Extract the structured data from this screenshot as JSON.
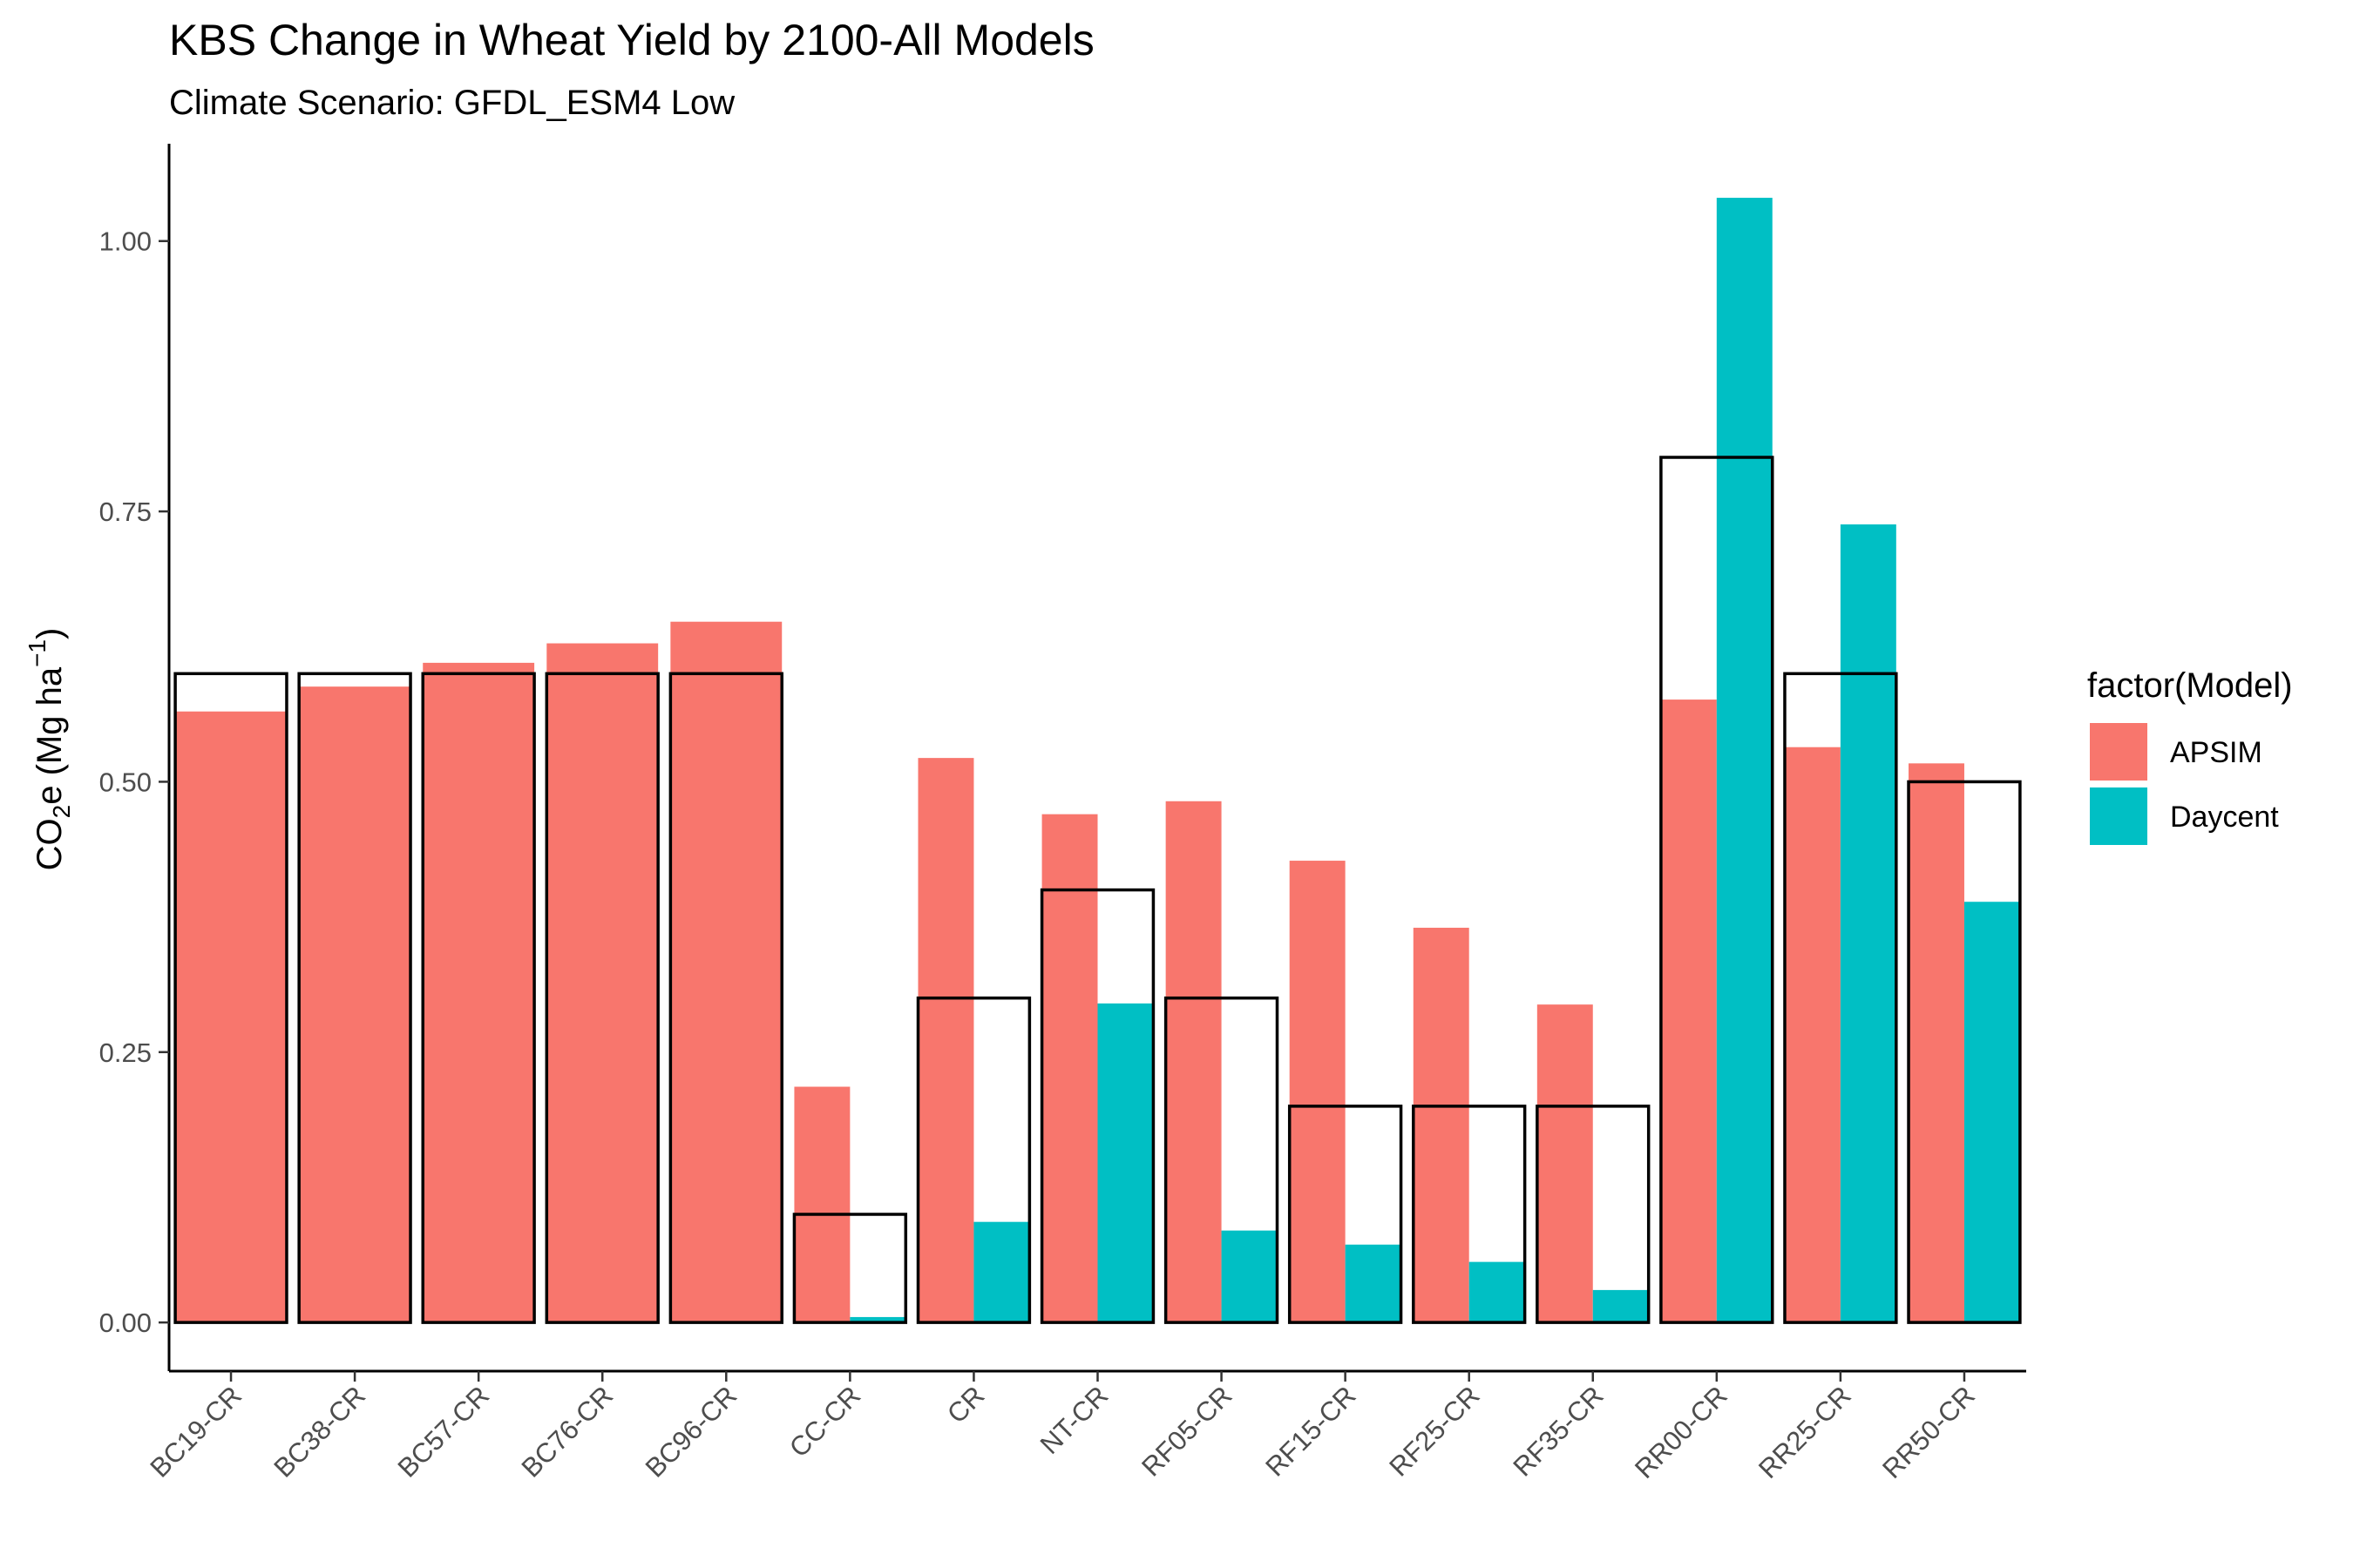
{
  "chart_data": {
    "type": "bar",
    "title": "KBS Change in Wheat Yield by 2100-All Models",
    "subtitle": "Climate Scenario: GFDL_ESM4 Low",
    "xlabel": "",
    "ylabel": {
      "base": "CO",
      "sub": "2",
      "mid": "e (Mg ha",
      "sup": "−1",
      "end": ")"
    },
    "ylim": [
      -0.045,
      1.09
    ],
    "yticks": [
      0.0,
      0.25,
      0.5,
      0.75,
      1.0
    ],
    "ytick_labels": [
      "0.00",
      "0.25",
      "0.50",
      "0.75",
      "1.00"
    ],
    "categories": [
      "BC19-CR",
      "BC38-CR",
      "BC57-CR",
      "BC76-CR",
      "BC96-CR",
      "CC-CR",
      "CR",
      "NT-CR",
      "RF05-CR",
      "RF15-CR",
      "RF25-CR",
      "RF35-CR",
      "RR00-CR",
      "RR25-CR",
      "RR50-CR"
    ],
    "legend_title": "factor(Model)",
    "legend_position": "right",
    "grid": false,
    "series": [
      {
        "name": "APSIM",
        "color": "#F8766D",
        "values": [
          0.565,
          0.588,
          0.61,
          0.628,
          0.648,
          0.218,
          0.522,
          0.47,
          0.482,
          0.427,
          0.365,
          0.294,
          0.576,
          0.532,
          0.517
        ]
      },
      {
        "name": "Daycent",
        "color": "#00BFC4",
        "values": [
          null,
          null,
          null,
          null,
          null,
          0.005,
          0.093,
          0.295,
          0.085,
          0.072,
          0.056,
          0.03,
          1.04,
          0.738,
          0.389
        ]
      }
    ],
    "observed_boxes": {
      "values": [
        0.6,
        0.6,
        0.6,
        0.6,
        0.6,
        0.1,
        0.3,
        0.4,
        0.3,
        0.2,
        0.2,
        0.2,
        0.8,
        0.6,
        0.5
      ],
      "stroke": "#000000"
    }
  }
}
